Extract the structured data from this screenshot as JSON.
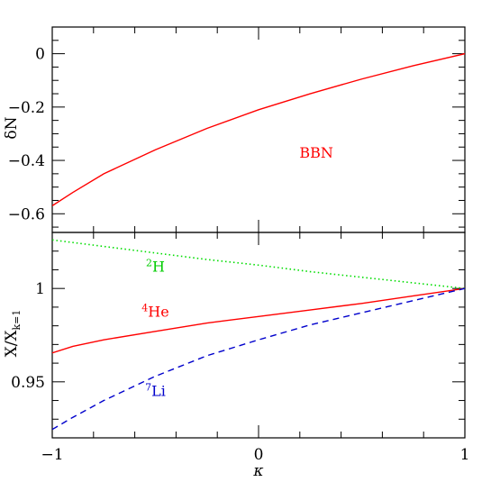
{
  "chart_data": [
    {
      "type": "line",
      "panel": "top",
      "xlabel": "",
      "ylabel": "δN",
      "xlim": [
        -1,
        1
      ],
      "ylim": [
        -0.67,
        0.1
      ],
      "x_ticks": [
        -1,
        0,
        1
      ],
      "y_ticks": [
        {
          "value": 0,
          "label": "0"
        },
        {
          "value": -0.2,
          "label": "−0.2"
        },
        {
          "value": -0.4,
          "label": "−0.4"
        },
        {
          "value": -0.6,
          "label": "−0.6"
        }
      ],
      "series": [
        {
          "name": "",
          "color": "#ff0000",
          "style": "solid",
          "x": [
            -1.0,
            -0.9,
            -0.75,
            -0.5,
            -0.25,
            0.0,
            0.25,
            0.5,
            0.75,
            1.0
          ],
          "y": [
            -0.57,
            -0.52,
            -0.45,
            -0.36,
            -0.28,
            -0.21,
            -0.15,
            -0.095,
            -0.045,
            0.0
          ]
        }
      ],
      "annotations": [
        {
          "text": "BBN",
          "x": 0.28,
          "y": -0.39,
          "color": "#ff0000"
        }
      ]
    },
    {
      "type": "line",
      "panel": "bottom",
      "xlabel": "κ",
      "ylabel": "X/X",
      "ylabel_subscript": "k=1",
      "xlim": [
        -1,
        1
      ],
      "ylim": [
        0.92,
        1.03
      ],
      "x_ticks": [
        {
          "value": -1,
          "label": "−1"
        },
        {
          "value": 0,
          "label": "0"
        },
        {
          "value": 1,
          "label": "1"
        }
      ],
      "y_ticks": [
        {
          "value": 1,
          "label": "1"
        },
        {
          "value": 0.95,
          "label": "0.95"
        }
      ],
      "series": [
        {
          "name": "2H",
          "color": "#00dd00",
          "style": "dotted",
          "x": [
            -1.0,
            -0.75,
            -0.5,
            -0.25,
            0.0,
            0.25,
            0.5,
            0.75,
            1.0
          ],
          "y": [
            1.026,
            1.0225,
            1.019,
            1.0155,
            1.0125,
            1.009,
            1.006,
            1.003,
            1.0
          ]
        },
        {
          "name": "4He",
          "color": "#ff0000",
          "style": "solid",
          "x": [
            -1.0,
            -0.9,
            -0.75,
            -0.5,
            -0.25,
            0.0,
            0.25,
            0.5,
            0.75,
            1.0
          ],
          "y": [
            0.9655,
            0.969,
            0.9725,
            0.977,
            0.9815,
            0.985,
            0.9885,
            0.992,
            0.996,
            1.0
          ]
        },
        {
          "name": "7Li",
          "color": "#0000cc",
          "style": "dashed",
          "x": [
            -1.0,
            -0.9,
            -0.75,
            -0.5,
            -0.25,
            0.0,
            0.25,
            0.5,
            0.75,
            1.0
          ],
          "y": [
            0.9245,
            0.931,
            0.94,
            0.953,
            0.964,
            0.9725,
            0.9805,
            0.987,
            0.9935,
            1.0
          ]
        }
      ],
      "annotations": [
        {
          "sup": "2",
          "text": "H",
          "x": -0.5,
          "y": 1.009,
          "color": "#00cc00"
        },
        {
          "sup": "4",
          "text": "He",
          "x": -0.5,
          "y": 0.985,
          "color": "#ff0000"
        },
        {
          "sup": "7",
          "text": "Li",
          "x": -0.5,
          "y": 0.9425,
          "color": "#0000cc"
        }
      ]
    }
  ]
}
